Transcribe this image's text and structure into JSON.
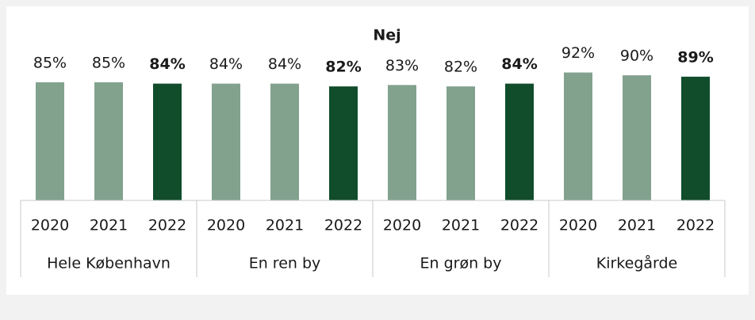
{
  "chart_data": {
    "type": "grouped-bar",
    "title": "Nej",
    "color": "#82a28e",
    "highlight": "2022",
    "highlight_color": "#114d2b",
    "groups": [
      {
        "name": "Hele København",
        "categories": [
          "2020",
          "2021",
          "2022"
        ],
        "values": [
          85,
          85,
          84
        ],
        "value_labels": [
          "85%",
          "85%",
          "84%"
        ]
      },
      {
        "name": "En ren by",
        "categories": [
          "2020",
          "2021",
          "2022"
        ],
        "values": [
          84,
          84,
          82
        ],
        "value_labels": [
          "84%",
          "84%",
          "82%"
        ]
      },
      {
        "name": "En grøn by",
        "categories": [
          "2020",
          "2021",
          "2022"
        ],
        "values": [
          83,
          82,
          84
        ],
        "value_labels": [
          "83%",
          "82%",
          "84%"
        ]
      },
      {
        "name": "Kirkegårde",
        "categories": [
          "2020",
          "2021",
          "2022"
        ],
        "values": [
          92,
          90,
          89
        ],
        "value_labels": [
          "92%",
          "90%",
          "89%"
        ]
      }
    ]
  }
}
